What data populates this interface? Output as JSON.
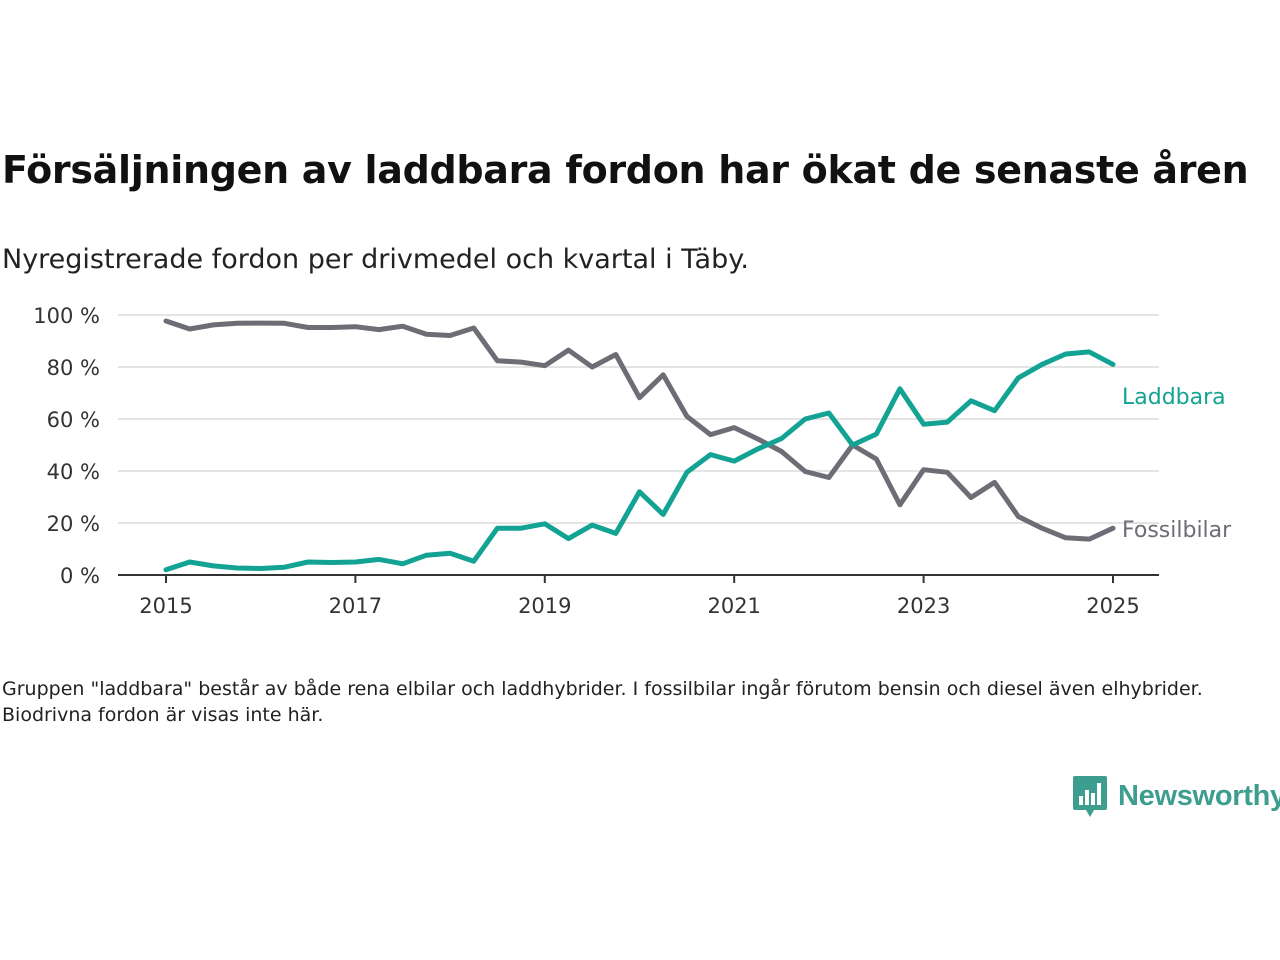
{
  "header": {
    "title": "Försäljningen av laddbara fordon har ökat de senaste åren",
    "subtitle": "Nyregistrerade fordon per drivmedel och kvartal i Täby."
  },
  "footer": {
    "note": "Gruppen \"laddbara\" består av både rena elbilar och laddhybrider. I fossilbilar ingår förutom bensin och diesel även elhybrider. Biodrivna fordon är visas inte här.",
    "logo_text": "Newsworthy"
  },
  "colors": {
    "laddbara": "#13a394",
    "fossilbilar": "#6e6d75",
    "grid": "#dcdcdc",
    "axis": "#333333",
    "brand": "#3d9e8f"
  },
  "chart_data": {
    "type": "line",
    "x": [
      2015.0,
      2015.25,
      2015.5,
      2015.75,
      2016.0,
      2016.25,
      2016.5,
      2016.75,
      2017.0,
      2017.25,
      2017.5,
      2017.75,
      2018.0,
      2018.25,
      2018.5,
      2018.75,
      2019.0,
      2019.25,
      2019.5,
      2019.75,
      2020.0,
      2020.25,
      2020.5,
      2020.75,
      2021.0,
      2021.25,
      2021.5,
      2021.75,
      2022.0,
      2022.25,
      2022.5,
      2022.75,
      2023.0,
      2023.25,
      2023.5,
      2023.75,
      2024.0,
      2024.25,
      2024.5,
      2024.75,
      2025.0
    ],
    "series": [
      {
        "name": "Laddbara",
        "color": "#13a394",
        "values": [
          2,
          5,
          3.5,
          2.7,
          2.5,
          3,
          5,
          4.8,
          5,
          6,
          4.3,
          7.6,
          8.4,
          5.3,
          18,
          18,
          19.7,
          14,
          19.2,
          16,
          32,
          23.3,
          39.5,
          46.3,
          43.8,
          48.5,
          52.5,
          60,
          62.3,
          50,
          54.2,
          71.6,
          58,
          58.8,
          67,
          63.2,
          75.8,
          81,
          85,
          85.8,
          81
        ]
      },
      {
        "name": "Fossilbilar",
        "color": "#6e6d75",
        "values": [
          97.7,
          94.6,
          96.2,
          96.8,
          96.9,
          96.8,
          95.2,
          95.2,
          95.5,
          94.4,
          95.7,
          92.6,
          92.1,
          95,
          82.4,
          81.9,
          80.5,
          86.5,
          80,
          84.8,
          68.2,
          77,
          61,
          54,
          56.7,
          52.3,
          47.5,
          39.8,
          37.5,
          50,
          44.6,
          27,
          40.5,
          39.5,
          29.8,
          35.6,
          22.5,
          18,
          14.3,
          13.8,
          18
        ]
      }
    ],
    "xticks": [
      2015,
      2017,
      2019,
      2021,
      2023,
      2025
    ],
    "xtick_labels": [
      "2015",
      "2017",
      "2019",
      "2021",
      "2023",
      "2025"
    ],
    "yticks": [
      0,
      20,
      40,
      60,
      80,
      100
    ],
    "ytick_labels": [
      "0 %",
      "20 %",
      "40 %",
      "60 %",
      "80 %",
      "100 %"
    ],
    "ylim": [
      0,
      100
    ],
    "xlim": [
      2014.75,
      2025.25
    ],
    "grid": true,
    "legend": "direct labels at line ends"
  }
}
